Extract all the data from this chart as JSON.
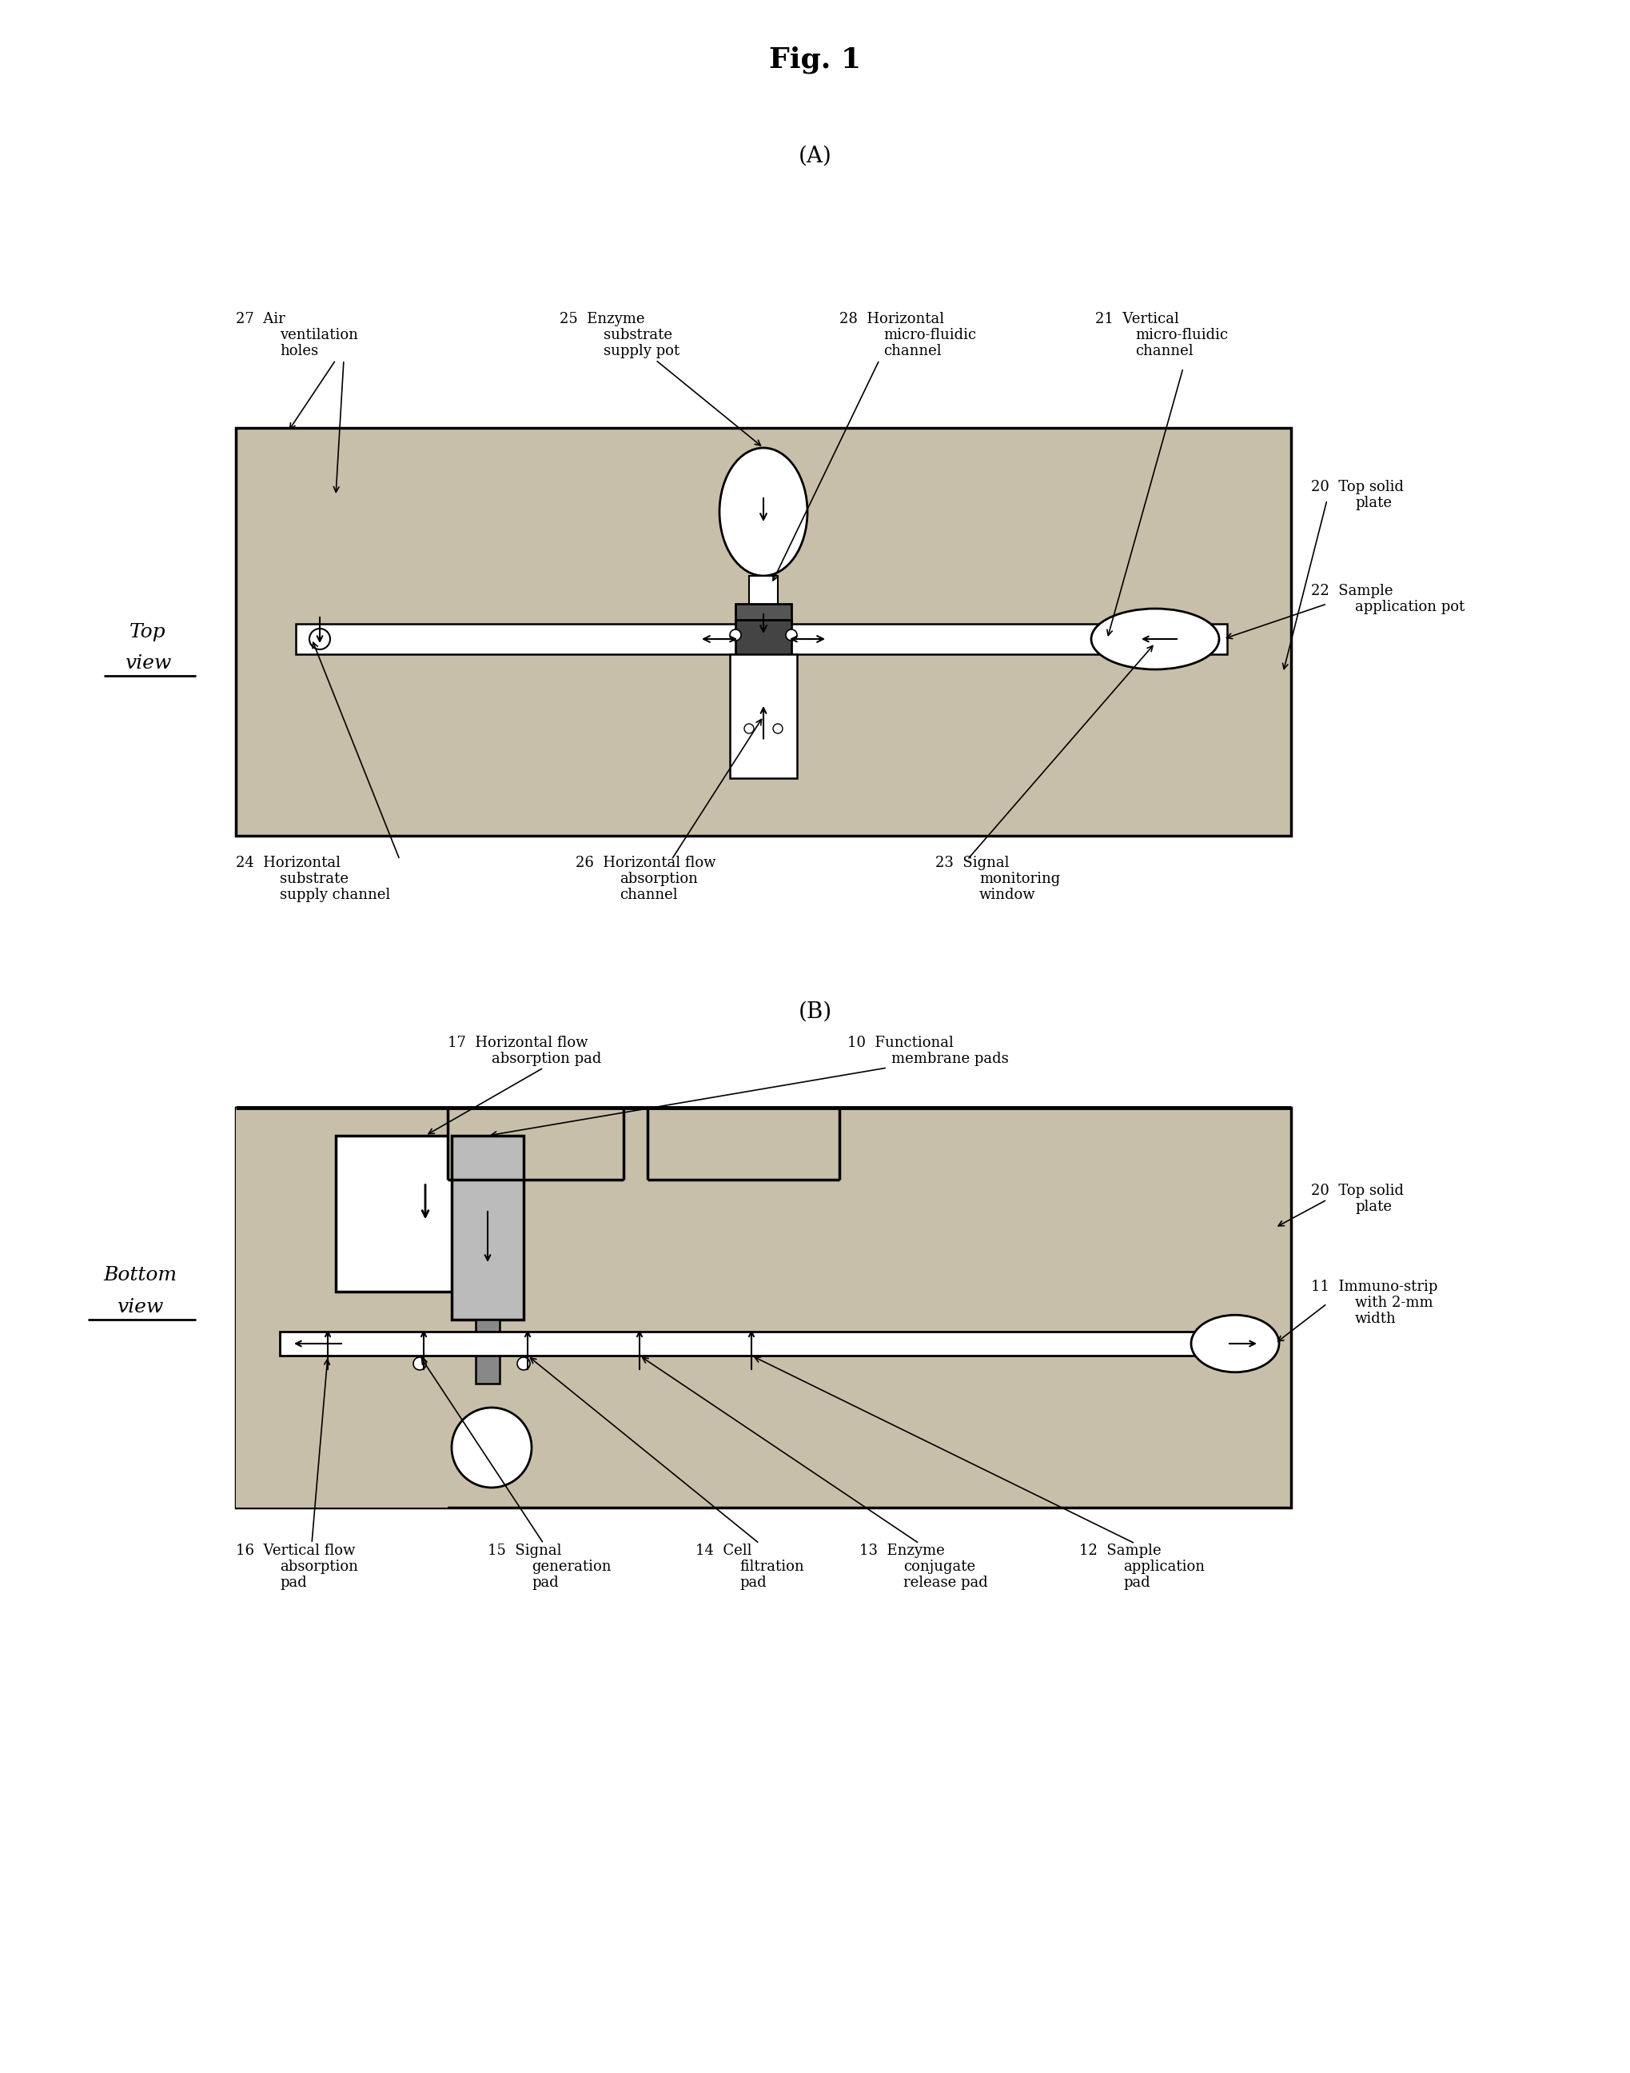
{
  "title": "Fig. 1",
  "bg_color": "#ffffff",
  "panel_bg": "#c8bfaa",
  "lc": "#000000",
  "section_A": "(A)",
  "section_B": "(B)",
  "top_view": "Top\nview",
  "bottom_view": "Bottom\nview",
  "fontsize_title": 26,
  "fontsize_section": 20,
  "fontsize_label": 13,
  "fontsize_side": 18
}
